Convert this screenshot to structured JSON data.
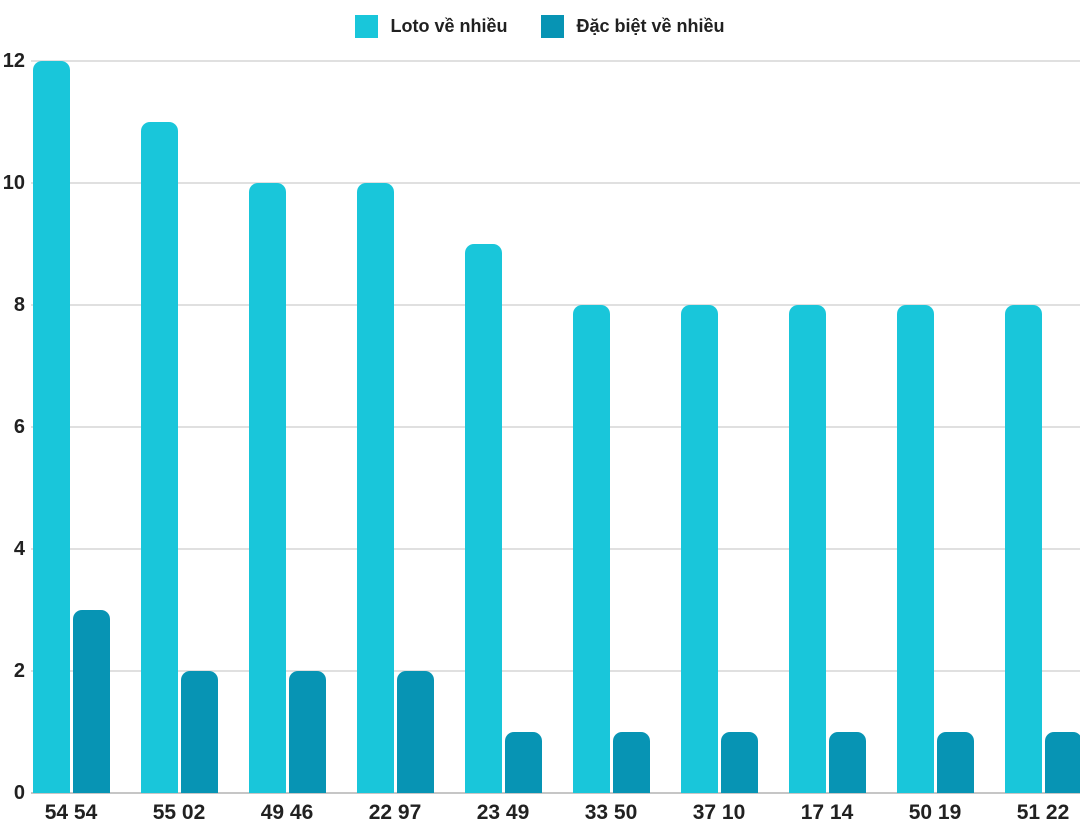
{
  "chart_data": {
    "type": "bar",
    "title": "",
    "xlabel": "",
    "ylabel": "",
    "categories": [
      "54 54",
      "55 02",
      "49 46",
      "22 97",
      "23 49",
      "33 50",
      "37 10",
      "17 14",
      "50 19",
      "51 22"
    ],
    "series": [
      {
        "name": "Loto về nhiều",
        "color": "#19C6DA",
        "values": [
          12,
          11,
          10,
          10,
          9,
          8,
          8,
          8,
          8,
          8
        ]
      },
      {
        "name": "Đặc biệt về nhiều",
        "color": "#0794B4",
        "values": [
          3,
          2,
          2,
          2,
          1,
          1,
          1,
          1,
          1,
          1
        ]
      }
    ],
    "ylim": [
      0,
      12
    ],
    "yticks": [
      0,
      2,
      4,
      6,
      8,
      10,
      12
    ],
    "grid": true,
    "legend_position": "top",
    "grid_color": "#E0E0E0",
    "baseline_color": "#C6C6C6",
    "text_color": "#212121",
    "background_color": "#FFFFFF"
  }
}
